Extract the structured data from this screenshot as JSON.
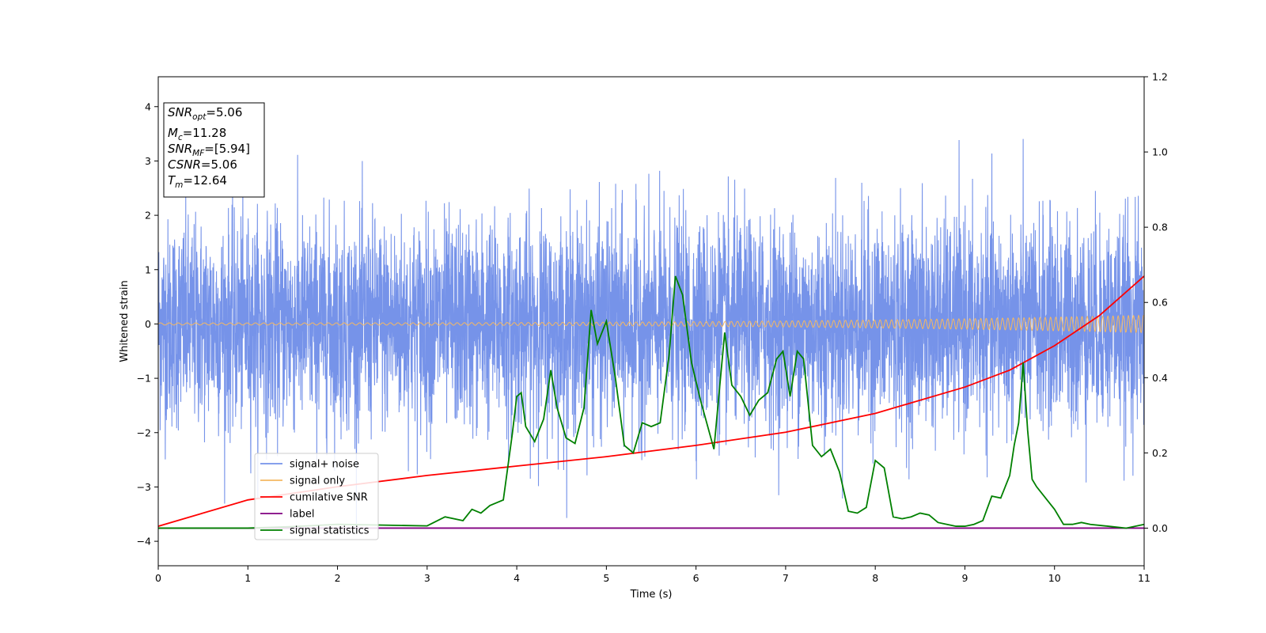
{
  "chart_data": {
    "type": "line",
    "xlabel": "Time (s)",
    "ylabel": "Whitened strain",
    "xlim": [
      0,
      11
    ],
    "ylim": [
      -4.45,
      4.55
    ],
    "y2lim": [
      -0.1,
      1.2
    ],
    "xticks": [
      "0",
      "1",
      "2",
      "3",
      "4",
      "5",
      "6",
      "7",
      "8",
      "9",
      "10",
      "11"
    ],
    "yticks": [
      "4",
      "3",
      "2",
      "1",
      "0",
      "−1",
      "−2",
      "−3",
      "−4"
    ],
    "y2ticks": [
      "1.2",
      "1.0",
      "0.8",
      "0.6",
      "0.4",
      "0.2",
      "0.0"
    ],
    "xtick_values": [
      0,
      1,
      2,
      3,
      4,
      5,
      6,
      7,
      8,
      9,
      10,
      11
    ],
    "ytick_values": [
      4,
      3,
      2,
      1,
      0,
      -1,
      -2,
      -3,
      -4
    ],
    "y2tick_values": [
      1.2,
      1.0,
      0.8,
      0.6,
      0.4,
      0.2,
      0.0
    ],
    "grid": false,
    "legend_position": "lower-left",
    "annotation": [
      {
        "base": "SNR",
        "sub": "opt",
        "rest": "=5.06"
      },
      {
        "base": "M",
        "sub": "c",
        "rest": "=11.28"
      },
      {
        "base": "SNR",
        "sub": "MF",
        "rest": "=[5.94]"
      },
      {
        "base": "CSNR",
        "sub": "",
        "rest": "=5.06"
      },
      {
        "base": "T",
        "sub": "m",
        "rest": "=12.64"
      }
    ],
    "series": [
      {
        "name": "signal+ noise",
        "color": "#4169e1",
        "axis": "left",
        "style": "noise",
        "std": 0.95,
        "clip": [
          -4.0,
          4.15
        ]
      },
      {
        "name": "signal only",
        "color": "#f5b862",
        "axis": "left",
        "style": "chirp",
        "amplitude": [
          0.02,
          0.16
        ]
      },
      {
        "name": "cumilative SNR",
        "color": "#ff0000",
        "axis": "right",
        "x": [
          0,
          1,
          2,
          3,
          4,
          5,
          6,
          7,
          8,
          9,
          9.5,
          10,
          10.5,
          11
        ],
        "y": [
          0.005,
          0.075,
          0.11,
          0.14,
          0.165,
          0.19,
          0.22,
          0.255,
          0.305,
          0.375,
          0.42,
          0.485,
          0.565,
          0.67
        ]
      },
      {
        "name": "label",
        "color": "#800080",
        "axis": "right",
        "x": [
          0,
          11
        ],
        "y": [
          0.0,
          0.0
        ]
      },
      {
        "name": "signal statistics",
        "color": "#008000",
        "axis": "right",
        "x": [
          0,
          0.5,
          1.0,
          1.5,
          2.0,
          2.5,
          3.0,
          3.2,
          3.4,
          3.5,
          3.6,
          3.7,
          3.85,
          3.95,
          4.0,
          4.05,
          4.1,
          4.2,
          4.3,
          4.38,
          4.45,
          4.55,
          4.65,
          4.75,
          4.83,
          4.9,
          5.0,
          5.1,
          5.2,
          5.3,
          5.4,
          5.5,
          5.6,
          5.7,
          5.77,
          5.85,
          5.95,
          6.05,
          6.2,
          6.32,
          6.4,
          6.5,
          6.6,
          6.7,
          6.8,
          6.9,
          6.97,
          7.05,
          7.13,
          7.2,
          7.3,
          7.4,
          7.5,
          7.6,
          7.7,
          7.8,
          7.9,
          8.0,
          8.1,
          8.2,
          8.3,
          8.4,
          8.5,
          8.6,
          8.7,
          8.8,
          8.9,
          9.0,
          9.1,
          9.2,
          9.3,
          9.4,
          9.5,
          9.55,
          9.6,
          9.65,
          9.7,
          9.75,
          9.8,
          9.9,
          10.0,
          10.1,
          10.2,
          10.3,
          10.4,
          10.6,
          10.8,
          11.0
        ],
        "y": [
          0.0,
          0.0,
          0.0,
          0.004,
          0.01,
          0.008,
          0.006,
          0.03,
          0.02,
          0.05,
          0.04,
          0.06,
          0.075,
          0.25,
          0.35,
          0.36,
          0.27,
          0.23,
          0.29,
          0.42,
          0.32,
          0.24,
          0.225,
          0.32,
          0.58,
          0.49,
          0.55,
          0.4,
          0.22,
          0.2,
          0.28,
          0.27,
          0.28,
          0.46,
          0.67,
          0.62,
          0.44,
          0.34,
          0.21,
          0.52,
          0.38,
          0.35,
          0.3,
          0.34,
          0.36,
          0.45,
          0.47,
          0.35,
          0.47,
          0.45,
          0.22,
          0.19,
          0.21,
          0.15,
          0.045,
          0.04,
          0.055,
          0.18,
          0.16,
          0.03,
          0.025,
          0.03,
          0.04,
          0.035,
          0.015,
          0.01,
          0.005,
          0.005,
          0.01,
          0.02,
          0.085,
          0.08,
          0.14,
          0.22,
          0.28,
          0.44,
          0.26,
          0.13,
          0.11,
          0.08,
          0.05,
          0.01,
          0.01,
          0.015,
          0.01,
          0.005,
          0.0,
          0.01
        ]
      }
    ]
  }
}
